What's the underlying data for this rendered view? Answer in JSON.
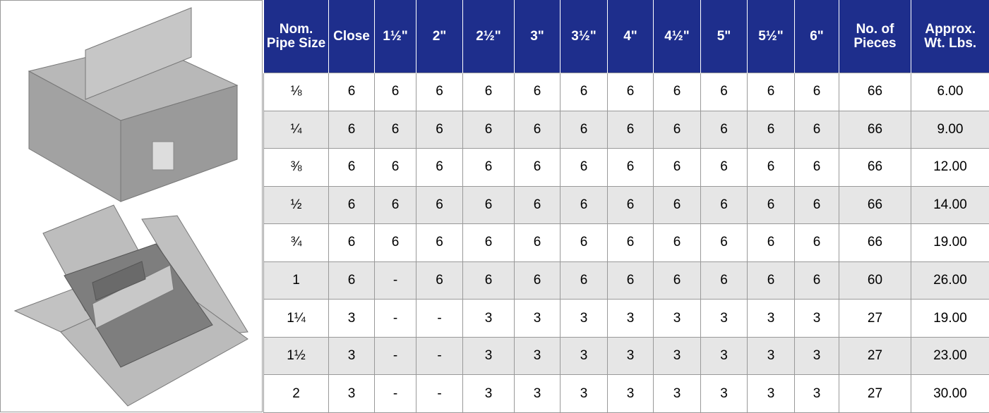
{
  "table": {
    "header": [
      "Nom. Pipe Size",
      "Close",
      "1½\"",
      "2\"",
      "2½\"",
      "3\"",
      "3½\"",
      "4\"",
      "4½\"",
      "5\"",
      "5½\"",
      "6\"",
      "No. of Pieces",
      "Approx. Wt. Lbs."
    ],
    "rows": [
      [
        "⅛",
        "6",
        "6",
        "6",
        "6",
        "6",
        "6",
        "6",
        "6",
        "6",
        "6",
        "6",
        "66",
        "6.00"
      ],
      [
        "¼",
        "6",
        "6",
        "6",
        "6",
        "6",
        "6",
        "6",
        "6",
        "6",
        "6",
        "6",
        "66",
        "9.00"
      ],
      [
        "⅜",
        "6",
        "6",
        "6",
        "6",
        "6",
        "6",
        "6",
        "6",
        "6",
        "6",
        "6",
        "66",
        "12.00"
      ],
      [
        "½",
        "6",
        "6",
        "6",
        "6",
        "6",
        "6",
        "6",
        "6",
        "6",
        "6",
        "6",
        "66",
        "14.00"
      ],
      [
        "¾",
        "6",
        "6",
        "6",
        "6",
        "6",
        "6",
        "6",
        "6",
        "6",
        "6",
        "6",
        "66",
        "19.00"
      ],
      [
        "1",
        "6",
        "-",
        "6",
        "6",
        "6",
        "6",
        "6",
        "6",
        "6",
        "6",
        "6",
        "60",
        "26.00"
      ],
      [
        "1¼",
        "3",
        "-",
        "-",
        "3",
        "3",
        "3",
        "3",
        "3",
        "3",
        "3",
        "3",
        "27",
        "19.00"
      ],
      [
        "1½",
        "3",
        "-",
        "-",
        "3",
        "3",
        "3",
        "3",
        "3",
        "3",
        "3",
        "3",
        "27",
        "23.00"
      ],
      [
        "2",
        "3",
        "-",
        "-",
        "3",
        "3",
        "3",
        "3",
        "3",
        "3",
        "3",
        "3",
        "27",
        "30.00"
      ]
    ]
  }
}
